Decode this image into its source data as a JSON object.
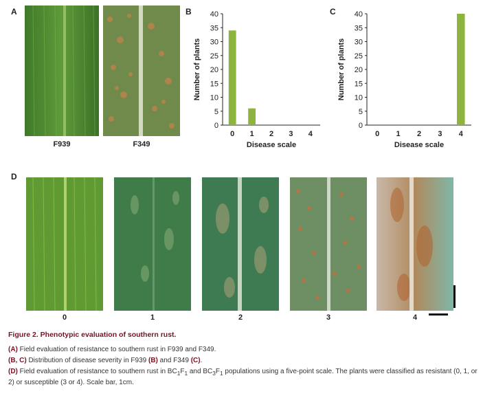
{
  "panels": {
    "a": "A",
    "b": "B",
    "c": "C",
    "d": "D"
  },
  "panel_a": {
    "labels": [
      "F939",
      "F349"
    ]
  },
  "panel_d": {
    "labels": [
      "0",
      "1",
      "2",
      "3",
      "4"
    ]
  },
  "chart_data": [
    {
      "type": "bar",
      "panel": "B",
      "categories": [
        "0",
        "1",
        "2",
        "3",
        "4"
      ],
      "values": [
        34,
        6,
        0,
        0,
        0
      ],
      "xlabel": "Disease scale",
      "ylabel": "Number of plants",
      "ylim": [
        0,
        40
      ],
      "yticks": [
        0,
        5,
        10,
        15,
        20,
        25,
        30,
        35,
        40
      ],
      "bar_color": "#8db43e"
    },
    {
      "type": "bar",
      "panel": "C",
      "categories": [
        "0",
        "1",
        "2",
        "3",
        "4"
      ],
      "values": [
        0,
        0,
        0,
        0,
        40
      ],
      "xlabel": "Disease scale",
      "ylabel": "Number of plants",
      "ylim": [
        0,
        40
      ],
      "yticks": [
        0,
        5,
        10,
        15,
        20,
        25,
        30,
        35,
        40
      ],
      "bar_color": "#8db43e"
    }
  ],
  "caption": {
    "title": "Figure 2.  Phenotypic evaluation of southern rust.",
    "a_tag": "(A)",
    "a_text": " Field evaluation of resistance to southern rust in F939 and F349.",
    "bc_tag1": "(B, C)",
    "bc_text1": " Distribution of disease severity in F939 ",
    "bc_tag2": "(B)",
    "bc_text2": " and F349 ",
    "bc_tag3": "(C)",
    "bc_text3": ".",
    "d_tag": "(D)",
    "d_text1": " Field evaluation of resistance to southern rust in BC",
    "d_sub1": "1",
    "d_text2": "F",
    "d_sub2": "1",
    "d_text3": " and BC",
    "d_sub3": "3",
    "d_text4": "F",
    "d_sub4": "1",
    "d_text5": " populations using a five-point scale. The plants were classified as resistant (0, 1, or 2) or susceptible (3 or 4). Scale bar, 1cm."
  }
}
